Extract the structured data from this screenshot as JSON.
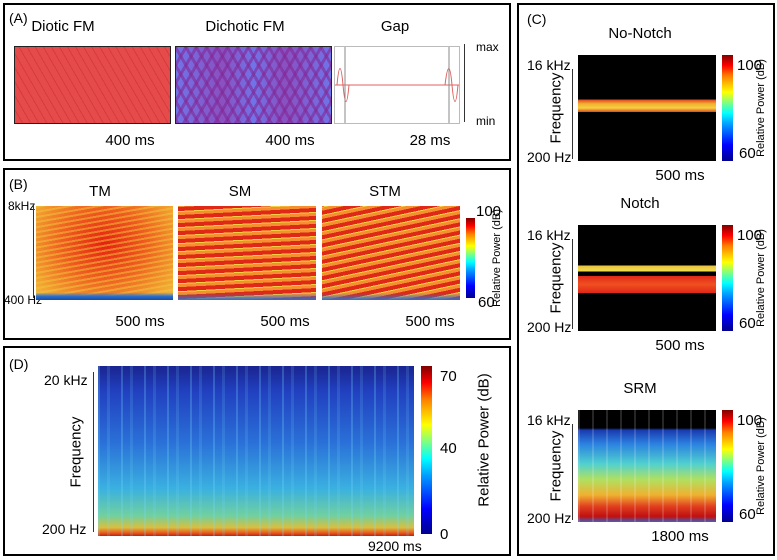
{
  "panels": [
    {
      "label": "(A)",
      "items": [
        {
          "title": "Diotic FM",
          "duration": "400 ms"
        },
        {
          "title": "Dichotic FM",
          "duration": "400 ms"
        },
        {
          "title": "Gap",
          "duration": "28 ms"
        }
      ],
      "scale": [
        "max",
        "min"
      ]
    },
    {
      "label": "(B)",
      "items": [
        {
          "title": "TM",
          "duration": "500 ms"
        },
        {
          "title": "SM",
          "duration": "500 ms"
        },
        {
          "title": "STM",
          "duration": "500 ms"
        }
      ],
      "freq": [
        "8kHz",
        "400 Hz"
      ],
      "colorbar": {
        "label": "Relative Power (dB)",
        "ticks": [
          "100",
          "60"
        ]
      }
    },
    {
      "label": "(C)",
      "items": [
        {
          "title": "No-Notch",
          "duration": "500 ms",
          "freq": [
            "16 kHz",
            "200 Hz"
          ],
          "axis": "Frequency",
          "colorbar": {
            "label": "Relative Power (dB)",
            "ticks": [
              "100",
              "60"
            ]
          }
        },
        {
          "title": "Notch",
          "duration": "500 ms",
          "freq": [
            "16 kHz",
            "200 Hz"
          ],
          "axis": "Frequency",
          "colorbar": {
            "label": "Relative Power (dB)",
            "ticks": [
              "100",
              "60"
            ]
          }
        },
        {
          "title": "SRM",
          "duration": "1800 ms",
          "freq": [
            "16 kHz",
            "200 Hz"
          ],
          "axis": "Frequency",
          "colorbar": {
            "label": "Relative Power (dB)",
            "ticks": [
              "100",
              "60"
            ]
          }
        }
      ]
    },
    {
      "label": "(D)",
      "freq": [
        "20 kHz",
        "200 Hz"
      ],
      "axis": "Frequency",
      "duration": "9200 ms",
      "colorbar": {
        "label": "Relative Power (dB)",
        "ticks": [
          "70",
          "40",
          "0"
        ]
      }
    }
  ]
}
